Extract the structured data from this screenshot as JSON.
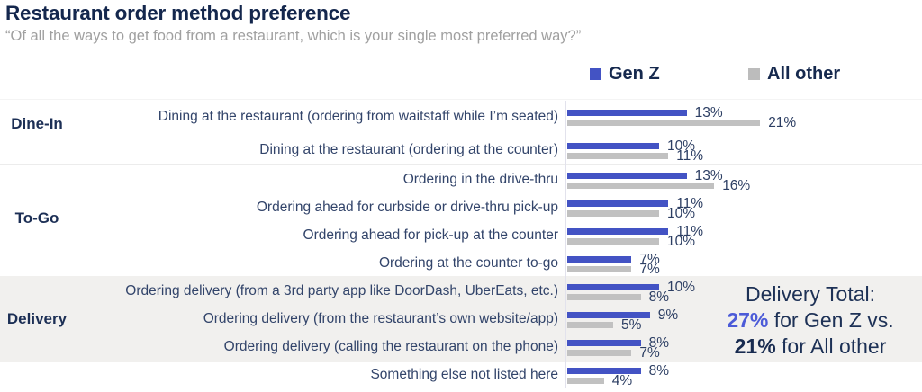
{
  "header": {
    "title": "Restaurant order method preference",
    "subtitle": "“Of all the ways to get food from a restaurant, which is your single most preferred way?”"
  },
  "legend": [
    {
      "label": "Gen Z",
      "color": "#4353c4"
    },
    {
      "label": "All other",
      "color": "#bcbcbc"
    }
  ],
  "chart_data": {
    "type": "bar",
    "orientation": "horizontal",
    "unit": "%",
    "series_names": [
      "Gen Z",
      "All other"
    ],
    "colors": {
      "genz": "#4353c4",
      "other": "#c1c1c1",
      "accent": "#4c5bd8",
      "band": "#f1f0ee"
    },
    "xlim": [
      0,
      22
    ],
    "groups": [
      {
        "name": "Dine-In",
        "highlighted": false,
        "rows": [
          {
            "label": "Dining at the restaurant (ordering from waitstaff while I’m seated)",
            "genz": 13,
            "other": 21
          },
          {
            "label": "Dining at the restaurant (ordering at the counter)",
            "genz": 10,
            "other": 11
          }
        ]
      },
      {
        "name": "To-Go",
        "highlighted": false,
        "rows": [
          {
            "label": "Ordering in the drive-thru",
            "genz": 13,
            "other": 16
          },
          {
            "label": "Ordering ahead for curbside or drive-thru pick-up",
            "genz": 11,
            "other": 10
          },
          {
            "label": "Ordering ahead for pick-up at the counter",
            "genz": 11,
            "other": 10
          },
          {
            "label": "Ordering at the counter to-go",
            "genz": 7,
            "other": 7
          }
        ]
      },
      {
        "name": "Delivery",
        "highlighted": true,
        "rows": [
          {
            "label": "Ordering delivery (from a 3rd party app like DoorDash, UberEats, etc.)",
            "genz": 10,
            "other": 8
          },
          {
            "label": "Ordering delivery (from the restaurant’s own website/app)",
            "genz": 9,
            "other": 5
          },
          {
            "label": "Ordering delivery (calling the restaurant on the phone)",
            "genz": 8,
            "other": 7
          }
        ]
      },
      {
        "name": "",
        "highlighted": false,
        "rows": [
          {
            "label": "Something else not listed here",
            "genz": 8,
            "other": 4
          }
        ]
      }
    ],
    "annotation": {
      "intro": "Delivery Total:",
      "genz_value": "27%",
      "genz_text": " for Gen Z vs.",
      "other_value": "21%",
      "other_text": " for All other"
    }
  }
}
